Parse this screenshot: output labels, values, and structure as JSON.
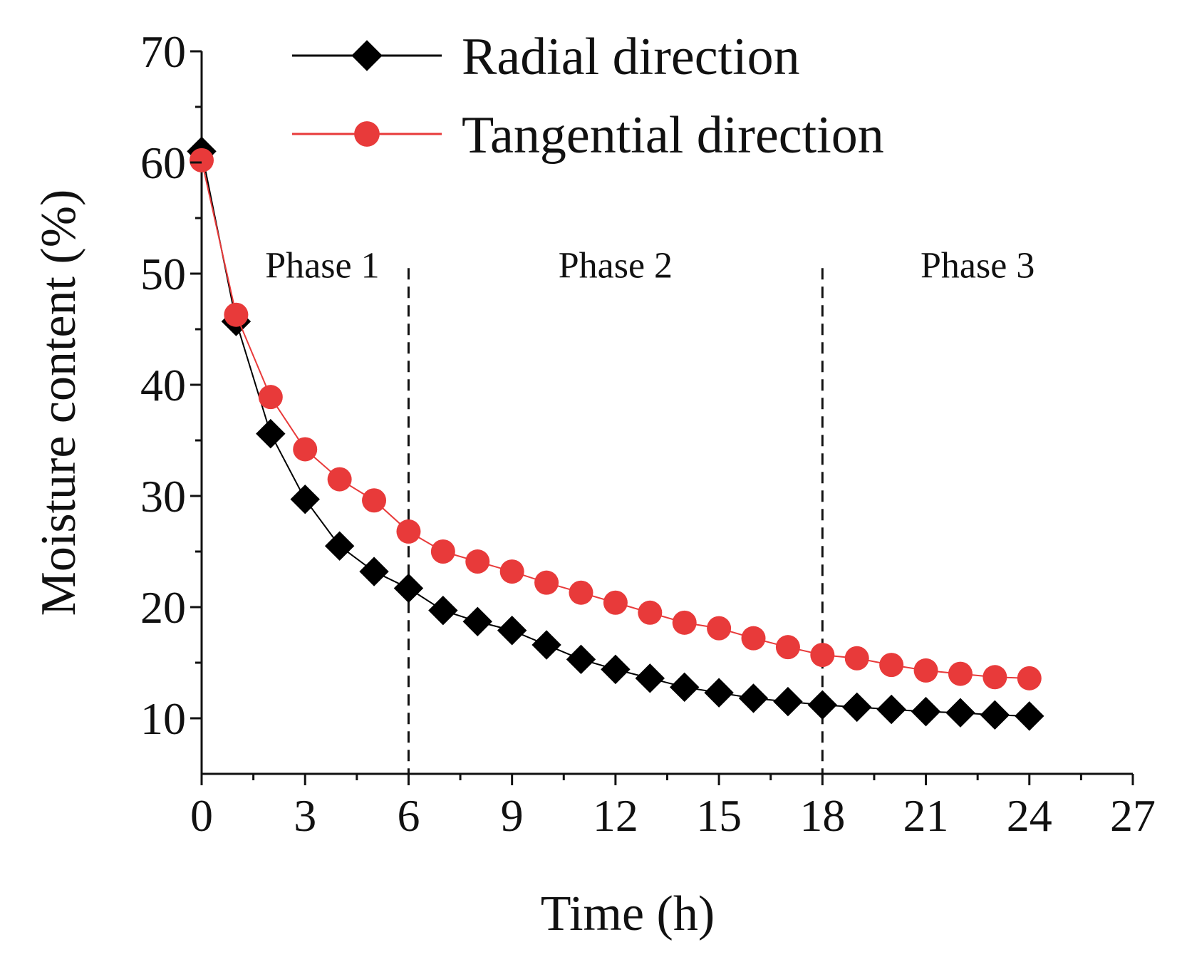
{
  "chart_data": {
    "type": "line",
    "title": "",
    "xlabel": "Time (h)",
    "ylabel": "Moisture content (%)",
    "xlim": [
      0,
      27
    ],
    "ylim": [
      5,
      70
    ],
    "xticks": [
      0,
      3,
      6,
      9,
      12,
      15,
      18,
      21,
      24,
      27
    ],
    "yticks": [
      10,
      20,
      30,
      40,
      50,
      60,
      70
    ],
    "grid": false,
    "legend_position": "top-right",
    "x": [
      0,
      1,
      2,
      3,
      4,
      5,
      6,
      7,
      8,
      9,
      10,
      11,
      12,
      13,
      14,
      15,
      16,
      17,
      18,
      19,
      20,
      21,
      22,
      23,
      24
    ],
    "series": [
      {
        "name": "Radial direction",
        "color": "#000000",
        "marker": "diamond",
        "values": [
          61.0,
          45.7,
          35.6,
          29.7,
          25.5,
          23.2,
          21.7,
          19.7,
          18.7,
          17.9,
          16.6,
          15.3,
          14.4,
          13.6,
          12.8,
          12.3,
          11.8,
          11.5,
          11.2,
          11.0,
          10.8,
          10.6,
          10.5,
          10.3,
          10.2
        ]
      },
      {
        "name": "Tangential direction",
        "color": "#e83a3a",
        "marker": "circle",
        "values": [
          60.2,
          46.3,
          38.9,
          34.2,
          31.5,
          29.6,
          26.8,
          25.0,
          24.1,
          23.2,
          22.2,
          21.3,
          20.4,
          19.5,
          18.6,
          18.1,
          17.2,
          16.4,
          15.7,
          15.4,
          14.8,
          14.3,
          14.0,
          13.7,
          13.6
        ]
      }
    ],
    "phase_boundaries": [
      6,
      18
    ],
    "annotations": [
      {
        "text": "Phase 1",
        "x": 3.5,
        "y": 50.8
      },
      {
        "text": "Phase 2",
        "x": 12.0,
        "y": 50.8
      },
      {
        "text": "Phase 3",
        "x": 22.5,
        "y": 50.8
      }
    ]
  }
}
